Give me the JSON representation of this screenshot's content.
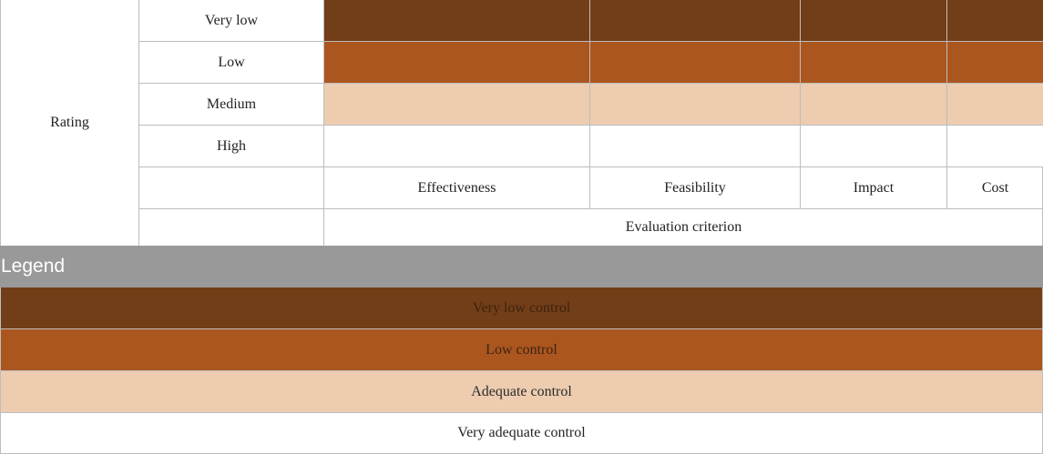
{
  "matrix": {
    "rating_label": "Rating",
    "axis_title": "Evaluation criterion",
    "rows": [
      {
        "label": "Very low",
        "level": "very_low"
      },
      {
        "label": "Low",
        "level": "low"
      },
      {
        "label": "Medium",
        "level": "medium"
      },
      {
        "label": "High",
        "level": "high"
      }
    ],
    "criteria": [
      "Effectiveness",
      "Feasibility",
      "Impact",
      "Cost"
    ]
  },
  "legend": {
    "title": "Legend",
    "items": [
      {
        "label": "Very low control",
        "color": "#723e17"
      },
      {
        "label": "Low control",
        "color": "#ab561f"
      },
      {
        "label": "Adequate control",
        "color": "#edccb0"
      },
      {
        "label": "Very adequate control",
        "color": "#ffffff"
      }
    ]
  },
  "colors": {
    "very_low": "#723e17",
    "low": "#ab561f",
    "medium": "#edccb0",
    "high": "#ffffff",
    "legend_header": "#999999",
    "border": "#bdbdbd"
  }
}
